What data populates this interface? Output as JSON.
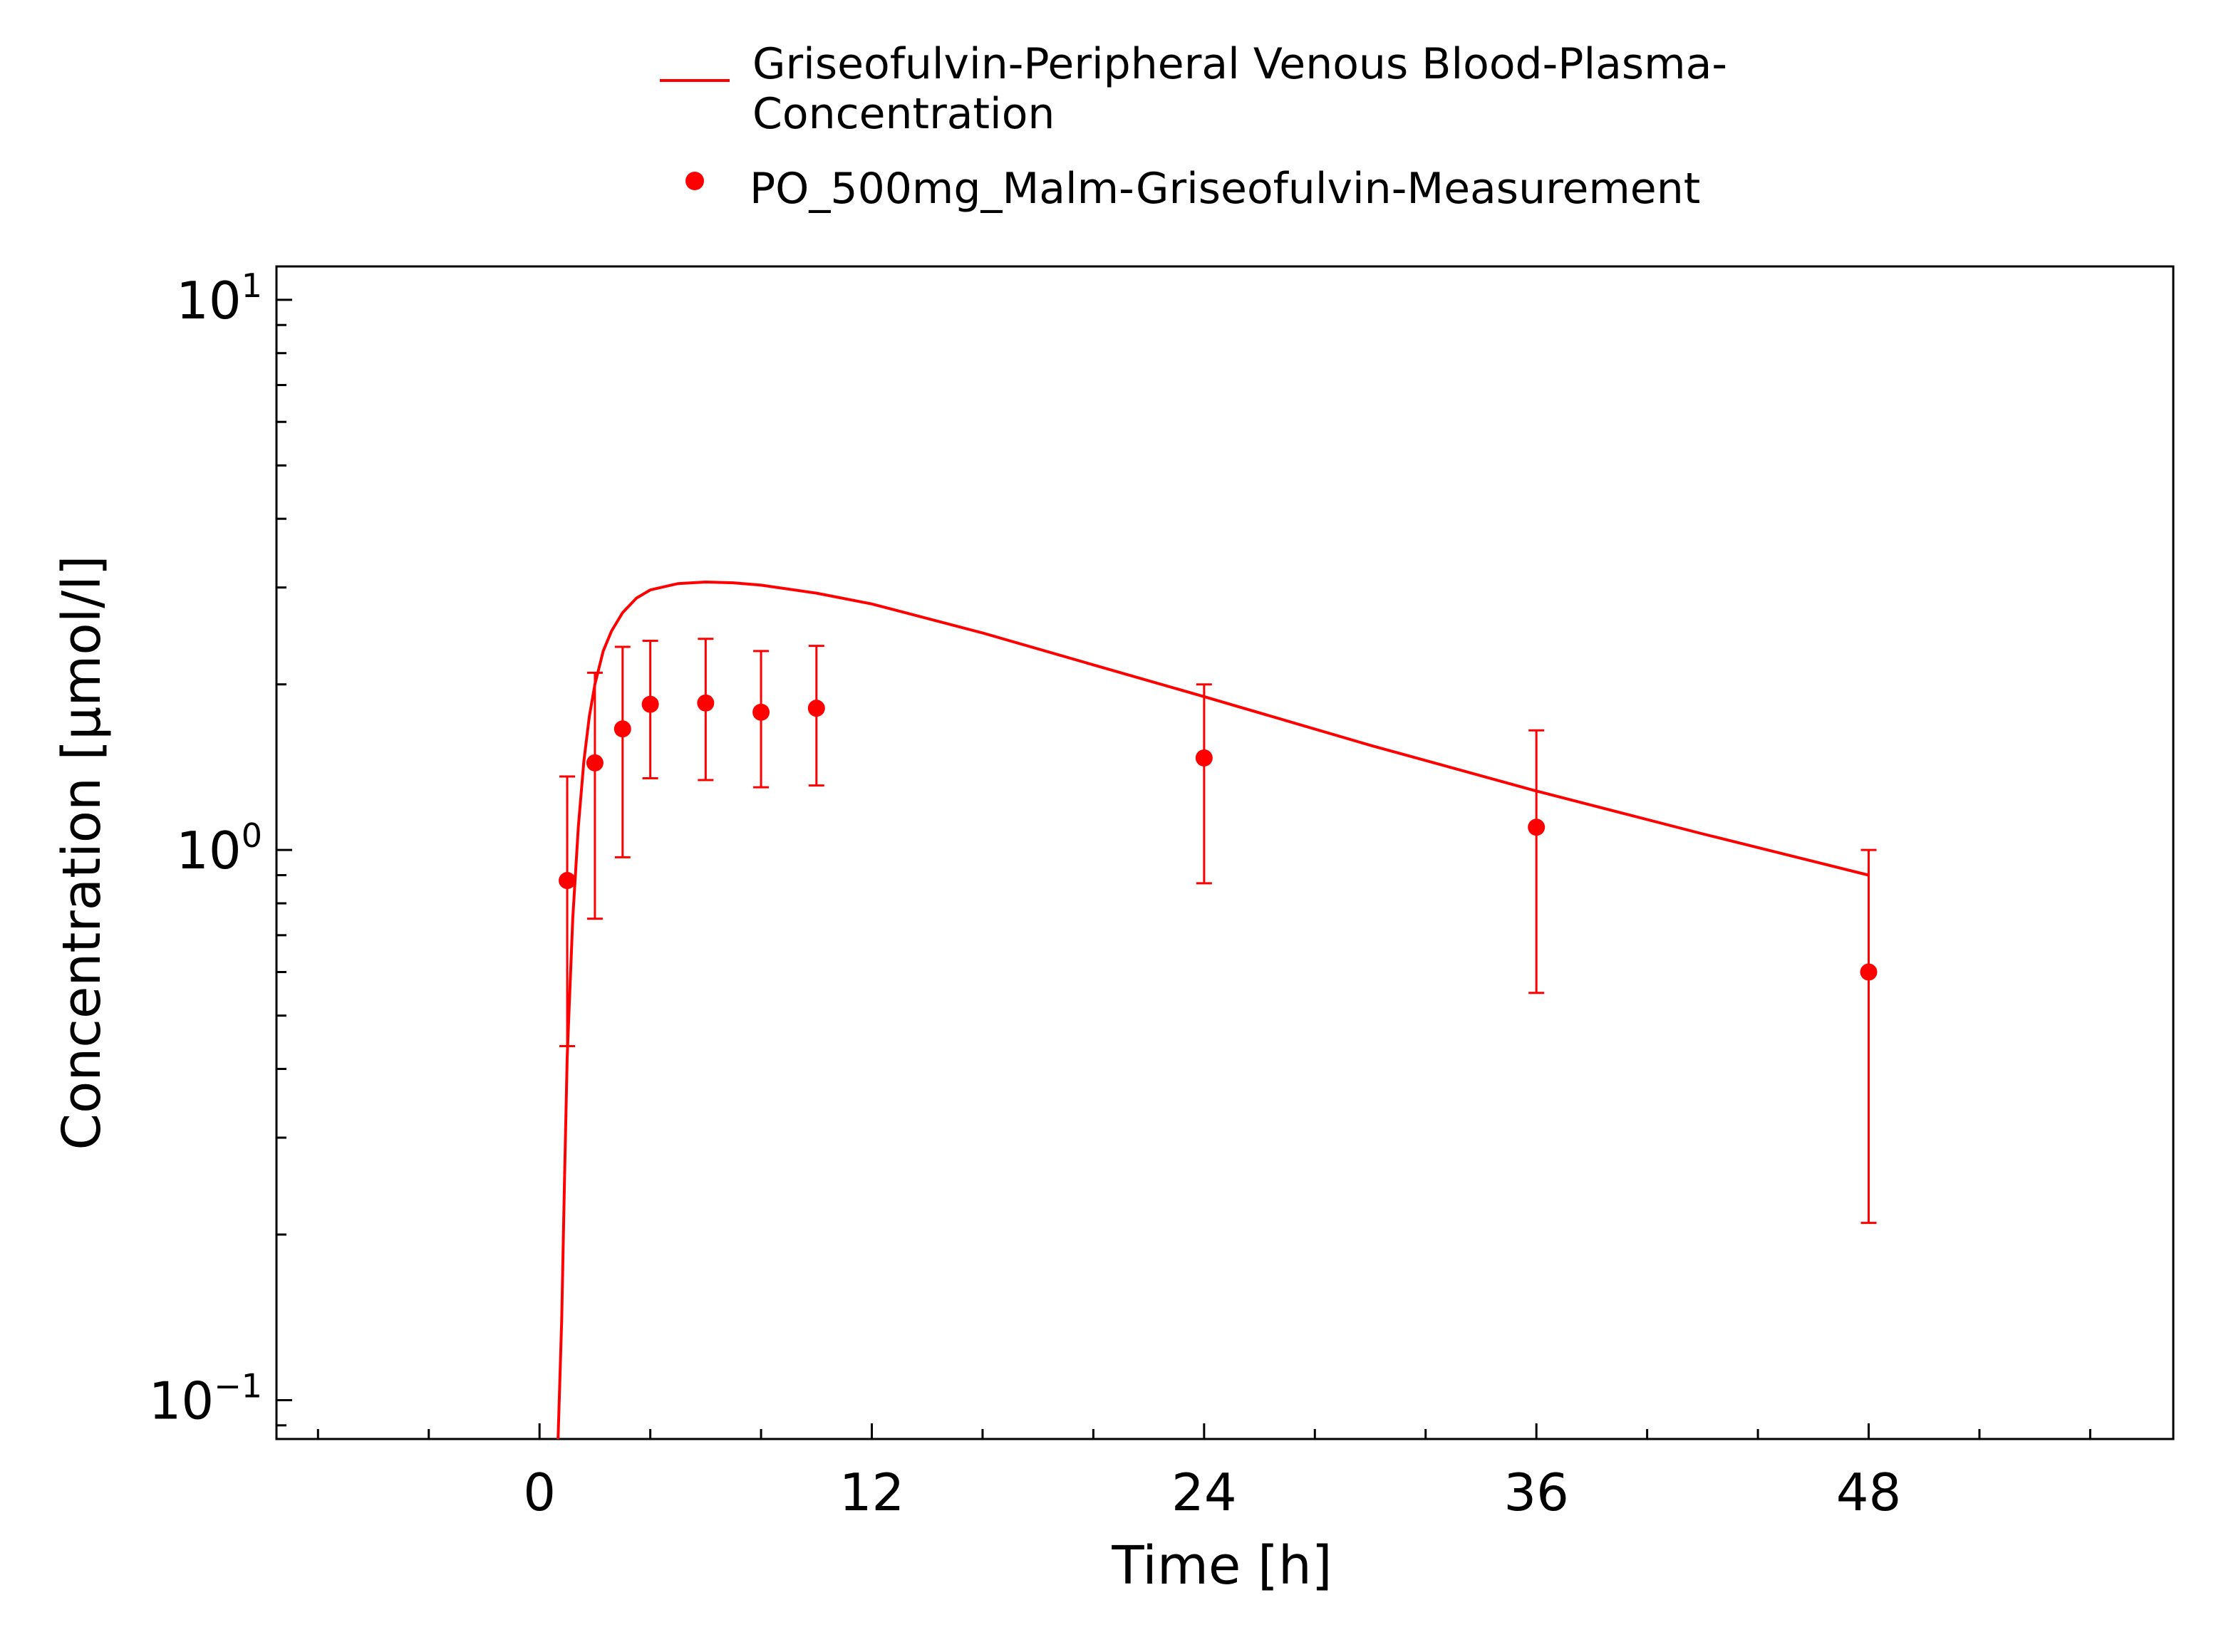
{
  "chart_data": {
    "type": "scatter",
    "title": "",
    "xlabel": "Time [h]",
    "ylabel": "Concentration [µmol/l]",
    "xlim": [
      -9.5,
      59
    ],
    "ylim": [
      0.085,
      11.5
    ],
    "y_scale": "log",
    "x_ticks": [
      0,
      12,
      24,
      36,
      48
    ],
    "x_tick_labels": [
      "0",
      "12",
      "24",
      "36",
      "48"
    ],
    "y_ticks": [
      0.1,
      1,
      10
    ],
    "y_tick_labels": [
      {
        "base": "10",
        "exp": "−1"
      },
      {
        "base": "10",
        "exp": "0"
      },
      {
        "base": "10",
        "exp": "1"
      }
    ],
    "grid": false,
    "legend_position": "top-center",
    "color": "#ff0000",
    "series": [
      {
        "name": "Griseofulvin-Peripheral Venous Blood-Plasma-Concentration",
        "legend_lines": [
          "Griseofulvin-Peripheral Venous Blood-Plasma-",
          "Concentration"
        ],
        "kind": "line",
        "x": [
          0.67,
          0.8,
          0.9,
          1.0,
          1.2,
          1.4,
          1.6,
          1.8,
          2.0,
          2.3,
          2.6,
          3.0,
          3.5,
          4.0,
          5.0,
          6.0,
          7.0,
          8.0,
          10.0,
          12.0,
          16.0,
          20.0,
          24.0,
          30.0,
          36.0,
          42.0,
          48.0
        ],
        "y": [
          0.085,
          0.14,
          0.25,
          0.42,
          0.75,
          1.1,
          1.45,
          1.75,
          2.0,
          2.3,
          2.5,
          2.7,
          2.87,
          2.97,
          3.05,
          3.07,
          3.06,
          3.03,
          2.93,
          2.8,
          2.48,
          2.17,
          1.9,
          1.55,
          1.28,
          1.07,
          0.9
        ]
      },
      {
        "name": "PO_500mg_Malm-Griseofulvin-Measurement",
        "kind": "points",
        "x": [
          1,
          2,
          3,
          4,
          6,
          8,
          10,
          24,
          36,
          48
        ],
        "y": [
          0.88,
          1.44,
          1.66,
          1.84,
          1.85,
          1.78,
          1.81,
          1.47,
          1.1,
          0.6
        ],
        "err_low": [
          0.44,
          0.75,
          0.97,
          1.35,
          1.34,
          1.3,
          1.31,
          0.87,
          0.55,
          0.21
        ],
        "err_high": [
          1.36,
          2.1,
          2.34,
          2.4,
          2.42,
          2.3,
          2.35,
          2.0,
          1.65,
          1.0
        ]
      }
    ]
  }
}
